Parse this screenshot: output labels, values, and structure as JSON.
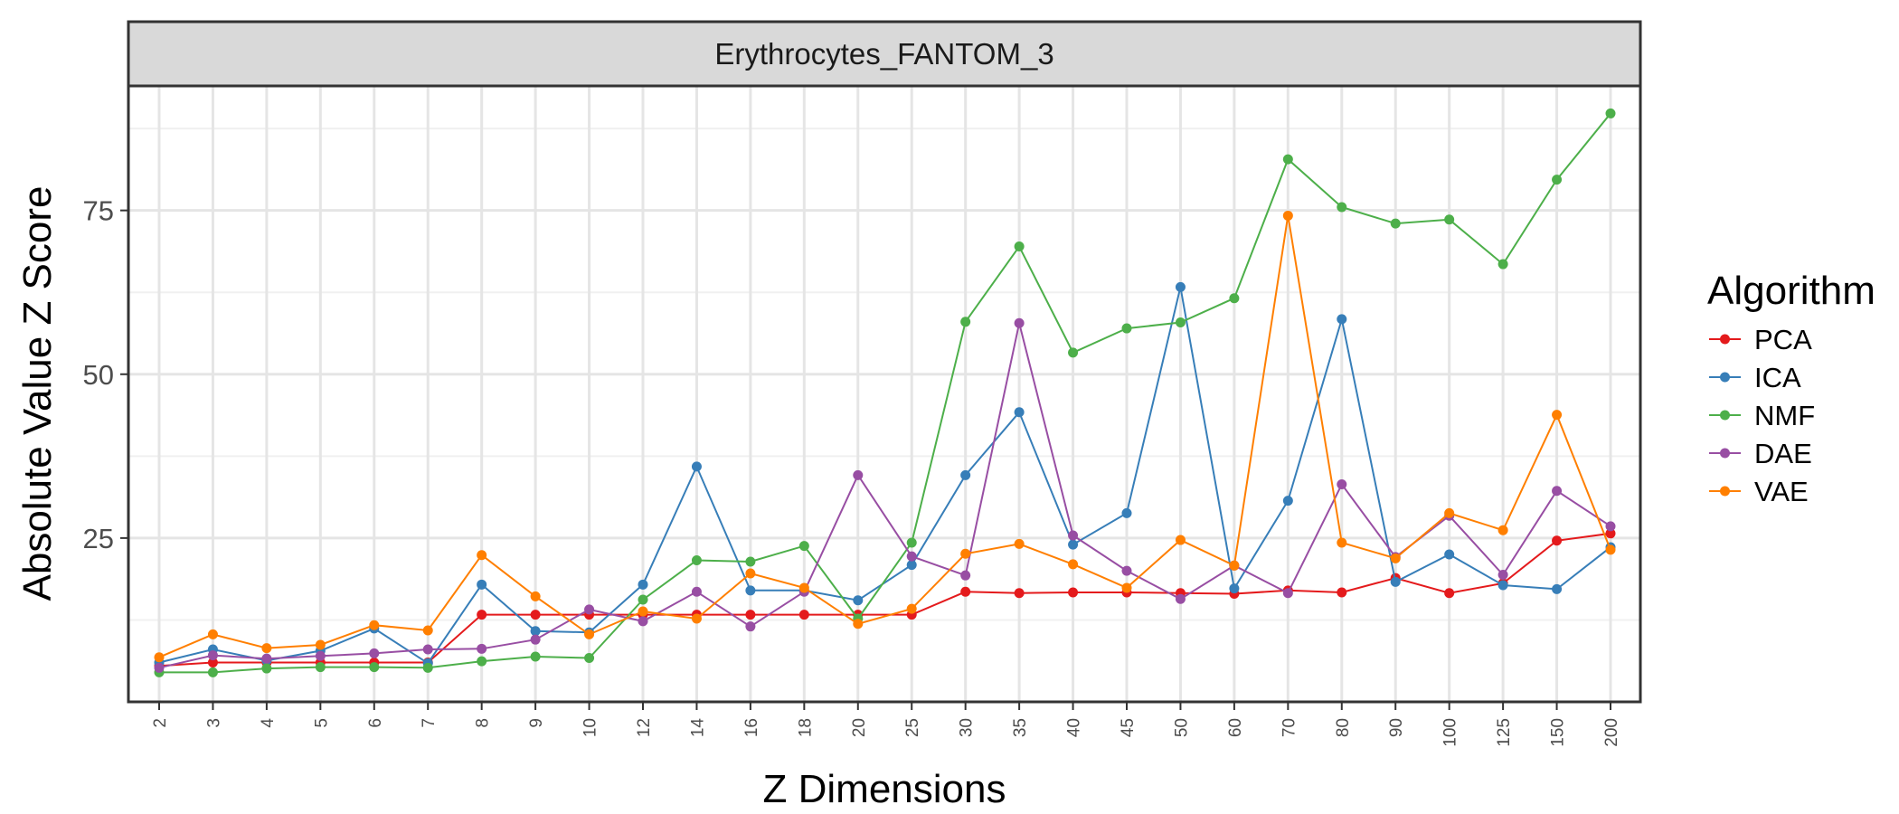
{
  "chart_data": {
    "type": "line",
    "panel_title": "Erythrocytes_FANTOM_3",
    "xlabel": "Z Dimensions",
    "ylabel": "Absolute Value Z Score",
    "categories": [
      "2",
      "3",
      "4",
      "5",
      "6",
      "7",
      "8",
      "9",
      "10",
      "12",
      "14",
      "16",
      "18",
      "20",
      "25",
      "30",
      "35",
      "40",
      "45",
      "50",
      "60",
      "70",
      "80",
      "90",
      "100",
      "125",
      "150",
      "200"
    ],
    "ylim": [
      0,
      94
    ],
    "yticks": [
      25,
      50,
      75
    ],
    "grid": true,
    "legend_position": "right",
    "legend_title": "Algorithm",
    "series": [
      {
        "name": "PCA",
        "color": "#e41a1c",
        "values": [
          5.5,
          6.0,
          6.0,
          6.0,
          6.0,
          6.0,
          13.3,
          13.3,
          13.3,
          13.3,
          13.3,
          13.3,
          13.3,
          13.3,
          13.3,
          16.8,
          16.6,
          16.7,
          16.7,
          16.6,
          16.5,
          17.0,
          16.7,
          18.9,
          16.6,
          18.1,
          24.6,
          25.7
        ]
      },
      {
        "name": "ICA",
        "color": "#377eb8",
        "values": [
          6.0,
          8.0,
          6.3,
          7.8,
          11.2,
          5.9,
          17.9,
          10.8,
          10.6,
          17.9,
          35.9,
          17.0,
          17.0,
          15.5,
          20.9,
          34.6,
          44.2,
          24.0,
          28.8,
          63.3,
          17.3,
          30.7,
          58.4,
          18.3,
          22.5,
          17.8,
          17.2,
          23.6
        ]
      },
      {
        "name": "NMF",
        "color": "#4daf4a",
        "values": [
          4.5,
          4.5,
          5.1,
          5.3,
          5.3,
          5.2,
          6.2,
          6.9,
          6.7,
          15.6,
          21.6,
          21.4,
          23.8,
          12.7,
          24.3,
          58.0,
          69.5,
          53.3,
          57.0,
          57.9,
          61.6,
          82.8,
          75.5,
          73.0,
          73.6,
          66.8,
          79.7,
          89.8
        ]
      },
      {
        "name": "DAE",
        "color": "#984ea3",
        "values": [
          5.2,
          7.1,
          6.6,
          7.0,
          7.4,
          8.0,
          8.1,
          9.5,
          14.1,
          12.3,
          16.8,
          11.5,
          16.8,
          34.6,
          22.2,
          19.3,
          57.8,
          25.4,
          20.0,
          15.7,
          20.8,
          16.6,
          33.2,
          22.1,
          28.4,
          19.4,
          32.2,
          26.8
        ]
      },
      {
        "name": "VAE",
        "color": "#ff7f00",
        "values": [
          6.8,
          10.3,
          8.2,
          8.7,
          11.7,
          10.9,
          22.4,
          16.1,
          10.3,
          13.8,
          12.7,
          19.6,
          17.4,
          11.9,
          14.2,
          22.6,
          24.1,
          21.0,
          17.4,
          24.7,
          20.8,
          74.2,
          24.3,
          21.9,
          28.8,
          26.2,
          43.8,
          23.2
        ]
      }
    ]
  }
}
